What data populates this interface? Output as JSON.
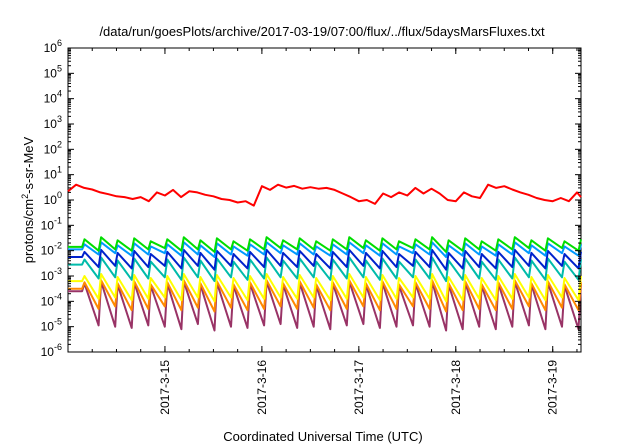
{
  "chart_data": {
    "type": "line",
    "title": "/data/run/goesPlots/archive/2017-03-19/07:00/flux/../flux/5daysMarsFluxes.txt",
    "xlabel": "Coordinated Universal Time (UTC)",
    "ylabel": {
      "base": "protons/cm",
      "sup": "2",
      "rest": "-s-sr-MeV"
    },
    "y_scale": "log",
    "ylim_exp": [
      -6,
      6
    ],
    "y_ticks": [
      {
        "exp": "-6"
      },
      {
        "exp": "-5"
      },
      {
        "exp": "-4"
      },
      {
        "exp": "-3"
      },
      {
        "exp": "-2"
      },
      {
        "exp": "-1"
      },
      {
        "exp": "0"
      },
      {
        "exp": "1"
      },
      {
        "exp": "2"
      },
      {
        "exp": "3"
      },
      {
        "exp": "4"
      },
      {
        "exp": "5"
      },
      {
        "exp": "6"
      }
    ],
    "xlim": [
      "2017-03-14 00:00",
      "2017-03-19 07:00"
    ],
    "x_ticks": [
      "2017-3-15",
      "2017-3-16",
      "2017-3-17",
      "2017-3-18",
      "2017-3-19"
    ],
    "grid": false,
    "legend": "none",
    "series": [
      {
        "color": "#ff0000",
        "x": [
          "2017-03-14 00:00",
          "2017-03-14 02:00",
          "2017-03-14 04:00",
          "2017-03-14 06:00",
          "2017-03-14 08:00",
          "2017-03-14 10:00",
          "2017-03-14 12:00",
          "2017-03-14 14:00",
          "2017-03-14 16:00",
          "2017-03-14 18:00",
          "2017-03-14 20:00",
          "2017-03-14 22:00",
          "2017-03-15 00:00",
          "2017-03-15 02:00",
          "2017-03-15 04:00",
          "2017-03-15 06:00",
          "2017-03-15 08:00",
          "2017-03-15 10:00",
          "2017-03-15 12:00",
          "2017-03-15 14:00",
          "2017-03-15 16:00",
          "2017-03-15 18:00",
          "2017-03-15 20:00",
          "2017-03-15 22:00",
          "2017-03-16 00:00",
          "2017-03-16 02:00",
          "2017-03-16 04:00",
          "2017-03-16 06:00",
          "2017-03-16 08:00",
          "2017-03-16 10:00",
          "2017-03-16 12:00",
          "2017-03-16 14:00",
          "2017-03-16 16:00",
          "2017-03-16 18:00",
          "2017-03-16 20:00",
          "2017-03-16 22:00",
          "2017-03-17 00:00",
          "2017-03-17 02:00",
          "2017-03-17 04:00",
          "2017-03-17 06:00",
          "2017-03-17 08:00",
          "2017-03-17 10:00",
          "2017-03-17 12:00",
          "2017-03-17 14:00",
          "2017-03-17 16:00",
          "2017-03-17 18:00",
          "2017-03-17 20:00",
          "2017-03-17 22:00",
          "2017-03-18 00:00",
          "2017-03-18 02:00",
          "2017-03-18 04:00",
          "2017-03-18 06:00",
          "2017-03-18 08:00",
          "2017-03-18 10:00",
          "2017-03-18 12:00",
          "2017-03-18 14:00",
          "2017-03-18 16:00",
          "2017-03-18 18:00",
          "2017-03-18 20:00",
          "2017-03-18 22:00",
          "2017-03-19 00:00",
          "2017-03-19 02:00",
          "2017-03-19 04:00",
          "2017-03-19 06:00",
          "2017-03-19 07:00"
        ],
        "y": [
          2.2,
          4.0,
          3.0,
          2.6,
          2.0,
          1.7,
          1.4,
          1.3,
          1.1,
          1.3,
          0.9,
          2.0,
          1.5,
          2.5,
          1.3,
          2.2,
          2.0,
          1.6,
          1.4,
          1.1,
          1.0,
          0.8,
          0.9,
          0.6,
          3.5,
          2.5,
          4.0,
          3.1,
          3.6,
          2.8,
          3.2,
          2.8,
          3.0,
          2.5,
          1.8,
          1.3,
          0.9,
          1.0,
          0.7,
          1.8,
          1.3,
          2.0,
          1.5,
          3.0,
          1.8,
          2.8,
          1.8,
          1.0,
          0.9,
          2.0,
          1.4,
          1.2,
          4.0,
          3.0,
          3.5,
          2.6,
          2.0,
          1.6,
          1.2,
          1.0,
          0.9,
          1.2,
          0.9,
          2.0,
          1.3
        ]
      },
      {
        "color": "#00dd00",
        "teeth": 31,
        "start_exp": -1.85,
        "lo_exp": -2.05,
        "hi_exp": -1.55,
        "drops": [
          -1.85,
          -2.0,
          -1.95,
          -2.0,
          -1.95,
          -1.9,
          -2.0,
          -1.95,
          -2.05,
          -1.95,
          -2.0,
          -1.95,
          -1.9,
          -1.95,
          -1.95,
          -2.0,
          -1.95,
          -1.9,
          -2.0,
          -1.95,
          -1.9,
          -1.95,
          -2.05,
          -2.0,
          -1.95,
          -2.0,
          -1.95,
          -1.9,
          -2.0,
          -1.9,
          -2.0
        ]
      },
      {
        "color": "#0099ff",
        "teeth": 31,
        "start_exp": -1.95,
        "lo_exp": -2.25,
        "hi_exp": -1.75,
        "drops": [
          -1.95,
          -2.15,
          -2.1,
          -2.2,
          -2.15,
          -2.1,
          -2.2,
          -2.15,
          -2.25,
          -2.15,
          -2.2,
          -2.15,
          -2.1,
          -2.15,
          -2.15,
          -2.2,
          -2.15,
          -2.1,
          -2.2,
          -2.15,
          -2.1,
          -2.15,
          -2.25,
          -2.2,
          -2.15,
          -2.2,
          -2.15,
          -2.1,
          -2.2,
          -2.1,
          -2.2
        ]
      },
      {
        "color": "#0022cc",
        "teeth": 31,
        "start_exp": -2.25,
        "lo_exp": -2.7,
        "hi_exp": -2.05,
        "drops": [
          -2.25,
          -2.65,
          -2.6,
          -2.7,
          -2.65,
          -2.6,
          -2.7,
          -2.6,
          -2.75,
          -2.6,
          -2.7,
          -2.65,
          -2.6,
          -2.65,
          -2.6,
          -2.7,
          -2.65,
          -2.6,
          -2.7,
          -2.65,
          -2.6,
          -2.65,
          -2.75,
          -2.7,
          -2.65,
          -2.7,
          -2.65,
          -2.6,
          -2.7,
          -2.6,
          -2.7
        ]
      },
      {
        "color": "#00bbaa",
        "teeth": 31,
        "start_exp": -2.55,
        "lo_exp": -3.15,
        "hi_exp": -2.35,
        "drops": [
          -2.55,
          -3.1,
          -3.05,
          -3.15,
          -3.1,
          -3.05,
          -3.15,
          -3.05,
          -3.2,
          -3.05,
          -3.15,
          -3.1,
          -3.05,
          -3.1,
          -3.05,
          -3.15,
          -3.1,
          -3.05,
          -3.15,
          -3.1,
          -3.05,
          -3.1,
          -3.2,
          -3.15,
          -3.1,
          -3.15,
          -3.1,
          -3.05,
          -3.15,
          -3.05,
          -3.15
        ]
      },
      {
        "color": "#ffff00",
        "teeth": 31,
        "start_exp": -3.2,
        "lo_exp": -3.95,
        "hi_exp": -3.0,
        "drops": [
          -3.2,
          -3.9,
          -3.85,
          -3.95,
          -3.9,
          -3.85,
          -3.95,
          -3.85,
          -4.0,
          -3.85,
          -3.95,
          -3.9,
          -3.85,
          -3.9,
          -3.85,
          -3.95,
          -3.9,
          -3.85,
          -3.95,
          -3.9,
          -3.85,
          -3.9,
          -4.0,
          -3.95,
          -3.9,
          -3.95,
          -3.9,
          -3.85,
          -3.95,
          -3.85,
          -3.95
        ]
      },
      {
        "color": "#ff8800",
        "teeth": 31,
        "start_exp": -3.5,
        "lo_exp": -4.35,
        "hi_exp": -3.25,
        "drops": [
          -3.5,
          -4.3,
          -4.2,
          -4.35,
          -4.3,
          -4.2,
          -4.35,
          -4.25,
          -4.4,
          -4.25,
          -4.35,
          -4.3,
          -4.2,
          -4.3,
          -4.25,
          -4.35,
          -4.3,
          -4.2,
          -4.35,
          -4.3,
          -4.2,
          -4.3,
          -4.4,
          -4.35,
          -4.3,
          -4.35,
          -4.3,
          -4.2,
          -4.35,
          -4.25,
          -4.35
        ]
      },
      {
        "color": "#993366",
        "teeth": 31,
        "start_exp": -3.6,
        "lo_exp": -5.1,
        "hi_exp": -3.3,
        "drops": [
          -3.6,
          -4.95,
          -5.0,
          -5.05,
          -4.95,
          -5.0,
          -5.1,
          -4.9,
          -5.15,
          -5.0,
          -5.05,
          -4.95,
          -4.9,
          -5.05,
          -5.0,
          -5.1,
          -4.95,
          -4.9,
          -5.05,
          -5.0,
          -4.95,
          -5.0,
          -5.15,
          -5.1,
          -5.0,
          -5.1,
          -5.0,
          -4.95,
          -5.1,
          -5.0,
          -5.1
        ]
      }
    ]
  }
}
